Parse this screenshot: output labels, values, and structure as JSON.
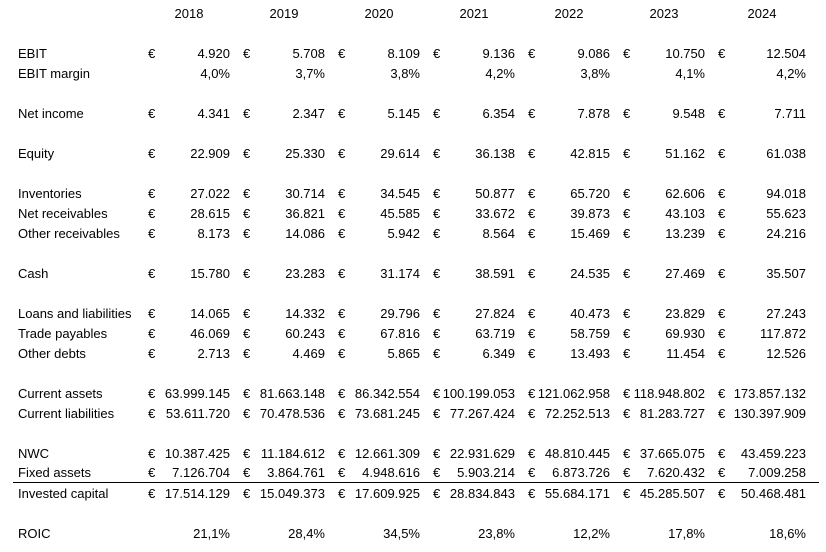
{
  "table": {
    "currency_symbol": "€",
    "years": [
      "2018",
      "2019",
      "2020",
      "2021",
      "2022",
      "2023",
      "2024"
    ],
    "rows": [
      {
        "label": "",
        "type": "blank",
        "values": []
      },
      {
        "label": "EBIT",
        "type": "currency",
        "values": [
          "4.920",
          "5.708",
          "8.109",
          "9.136",
          "9.086",
          "10.750",
          "12.504"
        ]
      },
      {
        "label": "EBIT margin",
        "type": "percent",
        "values": [
          "4,0%",
          "3,7%",
          "3,8%",
          "4,2%",
          "3,8%",
          "4,1%",
          "4,2%"
        ]
      },
      {
        "label": "",
        "type": "blank",
        "values": []
      },
      {
        "label": "Net income",
        "type": "currency",
        "values": [
          "4.341",
          "2.347",
          "5.145",
          "6.354",
          "7.878",
          "9.548",
          "7.711"
        ]
      },
      {
        "label": "",
        "type": "blank",
        "values": []
      },
      {
        "label": "Equity",
        "type": "currency",
        "values": [
          "22.909",
          "25.330",
          "29.614",
          "36.138",
          "42.815",
          "51.162",
          "61.038"
        ]
      },
      {
        "label": "",
        "type": "blank",
        "values": []
      },
      {
        "label": "Inventories",
        "type": "currency",
        "values": [
          "27.022",
          "30.714",
          "34.545",
          "50.877",
          "65.720",
          "62.606",
          "94.018"
        ]
      },
      {
        "label": "Net receivables",
        "type": "currency",
        "values": [
          "28.615",
          "36.821",
          "45.585",
          "33.672",
          "39.873",
          "43.103",
          "55.623"
        ]
      },
      {
        "label": "Other receivables",
        "type": "currency",
        "values": [
          "8.173",
          "14.086",
          "5.942",
          "8.564",
          "15.469",
          "13.239",
          "24.216"
        ]
      },
      {
        "label": "",
        "type": "blank",
        "values": []
      },
      {
        "label": "Cash",
        "type": "currency",
        "values": [
          "15.780",
          "23.283",
          "31.174",
          "38.591",
          "24.535",
          "27.469",
          "35.507"
        ]
      },
      {
        "label": "",
        "type": "blank",
        "values": []
      },
      {
        "label": "Loans and liabilities",
        "type": "currency",
        "values": [
          "14.065",
          "14.332",
          "29.796",
          "27.824",
          "40.473",
          "23.829",
          "27.243"
        ]
      },
      {
        "label": "Trade payables",
        "type": "currency",
        "values": [
          "46.069",
          "60.243",
          "67.816",
          "63.719",
          "58.759",
          "69.930",
          "117.872"
        ]
      },
      {
        "label": "Other debts",
        "type": "currency",
        "values": [
          "2.713",
          "4.469",
          "5.865",
          "6.349",
          "13.493",
          "11.454",
          "12.526"
        ]
      },
      {
        "label": "",
        "type": "blank",
        "values": []
      },
      {
        "label": "Current assets",
        "type": "currency",
        "values": [
          "63.999.145",
          "81.663.148",
          "86.342.554",
          "100.199.053",
          "121.062.958",
          "118.948.802",
          "173.857.132"
        ]
      },
      {
        "label": "Current liabilities",
        "type": "currency",
        "values": [
          "53.611.720",
          "70.478.536",
          "73.681.245",
          "77.267.424",
          "72.252.513",
          "81.283.727",
          "130.397.909"
        ]
      },
      {
        "label": "",
        "type": "blank",
        "values": []
      },
      {
        "label": "NWC",
        "type": "currency",
        "values": [
          "10.387.425",
          "11.184.612",
          "12.661.309",
          "22.931.629",
          "48.810.445",
          "37.665.075",
          "43.459.223"
        ]
      },
      {
        "label": "Fixed assets",
        "type": "currency",
        "border_bottom": true,
        "values": [
          "7.126.704",
          "3.864.761",
          "4.948.616",
          "5.903.214",
          "6.873.726",
          "7.620.432",
          "7.009.258"
        ]
      },
      {
        "label": "Invested capital",
        "type": "currency",
        "values": [
          "17.514.129",
          "15.049.373",
          "17.609.925",
          "28.834.843",
          "55.684.171",
          "45.285.507",
          "50.468.481"
        ]
      },
      {
        "label": "",
        "type": "blank",
        "values": []
      },
      {
        "label": "ROIC",
        "type": "percent",
        "values": [
          "21,1%",
          "28,4%",
          "34,5%",
          "23,8%",
          "12,2%",
          "17,8%",
          "18,6%"
        ]
      }
    ]
  }
}
